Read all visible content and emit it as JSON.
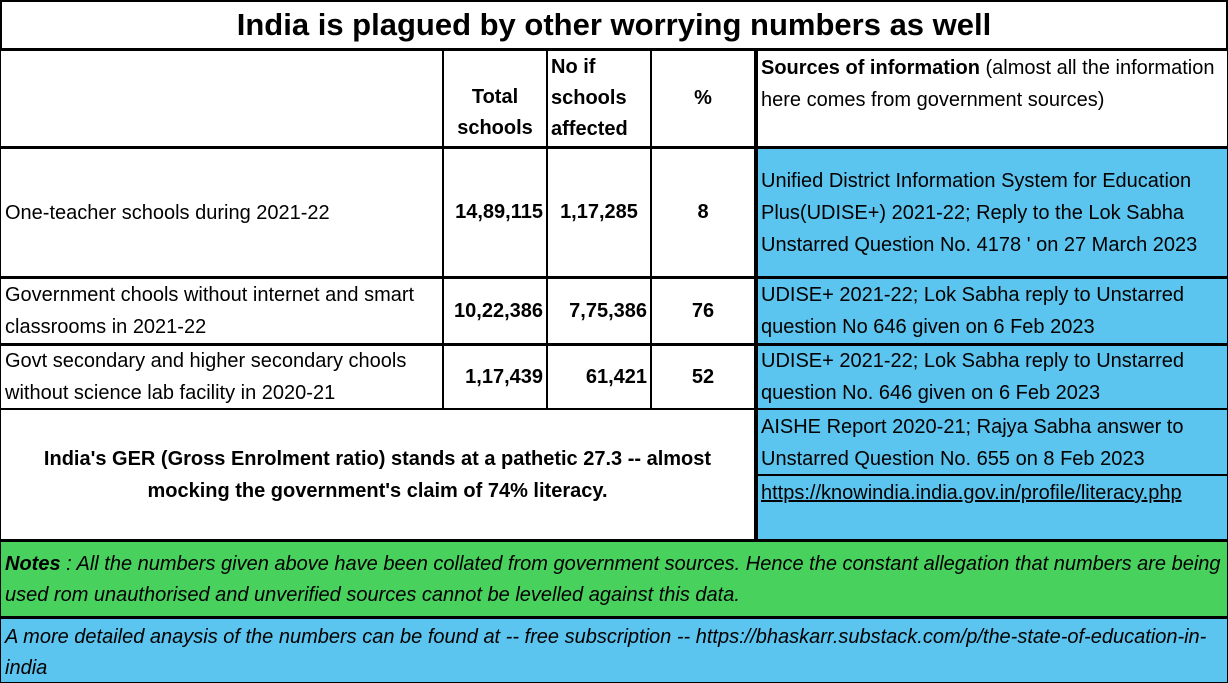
{
  "title": "India is plagued by other worrying numbers as well",
  "headers": {
    "total": "Total schools",
    "affected": "No if schools affected",
    "pct": "%",
    "sources_bold": "Sources of information",
    "sources_rest": " (almost all the information here comes from government sources)"
  },
  "rows": [
    {
      "label": "One-teacher schools during 2021-22",
      "total": "14,89,115",
      "affected": "1,17,285",
      "pct": "8",
      "source": "Unified District Information System for Education Plus(UDISE+) 2021-22;  Reply to the Lok Sabha Unstarred Question No. 4178 ' on 27 March 2023"
    },
    {
      "label": "Government chools without internet and smart classrooms in 2021-22",
      "total": "10,22,386",
      "affected": "7,75,386",
      "pct": "76",
      "source": "UDISE+ 2021-22; Lok Sabha reply to Unstarred question No 646 given on 6 Feb 2023"
    },
    {
      "label": "Govt secondary and higher secondary chools without science lab facility in 2020-21",
      "total": "1,17,439",
      "affected": "61,421",
      "pct": "52",
      "source": "UDISE+ 2021-22; Lok Sabha reply to Unstarred question No. 646 given on 6 Feb 2023"
    }
  ],
  "ger": {
    "text": "India's GER (Gross Enrolment ratio) stands at a pathetic 27.3 -- almost mocking the government's claim of 74% literacy.",
    "source1": "AISHE Report 2020-21; Rajya Sabha answer to Unstarred Question No. 655 on 8 Feb 2023",
    "source2": "https://knowindia.india.gov.in/profile/literacy.php"
  },
  "notes": {
    "label": "Notes",
    "text": " : All the numbers given above have been collated from government sources.  Hence the constant allegation that numbers are being used rom unauthorised and unverified sources cannot be levelled against this data."
  },
  "footer": "A more detailed anaysis of the numbers can be found at -- free subscription -- https://bhaskarr.substack.com/p/the-state-of-education-in-india",
  "colors": {
    "source_fill": "#5bc4ef",
    "notes_fill": "#49d15e"
  }
}
